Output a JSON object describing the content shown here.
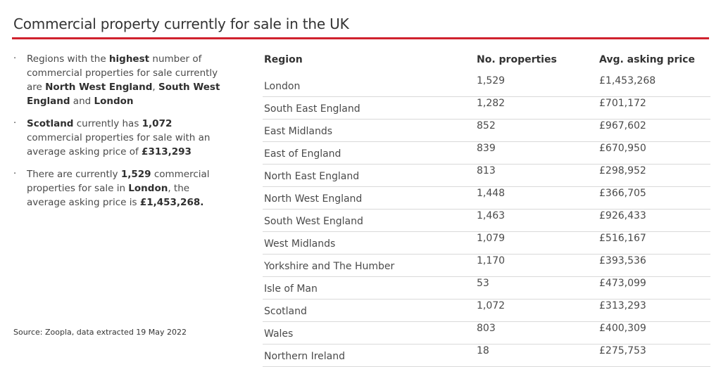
{
  "title": "Commercial property currently for sale in the UK",
  "accent_color": "#d0222e",
  "bullets": [
    {
      "parts": [
        {
          "text": "Regions with the ",
          "bold": false
        },
        {
          "text": "highest",
          "bold": true
        },
        {
          "text": " number of commercial properties for sale currently are ",
          "bold": false
        },
        {
          "text": "North West England",
          "bold": true
        },
        {
          "text": ", ",
          "bold": false
        },
        {
          "text": "South West England",
          "bold": true
        },
        {
          "text": " and ",
          "bold": false
        },
        {
          "text": "London",
          "bold": true
        }
      ]
    },
    {
      "parts": [
        {
          "text": "Scotland",
          "bold": true
        },
        {
          "text": " currently has ",
          "bold": false
        },
        {
          "text": "1,072",
          "bold": true
        },
        {
          "text": " commercial properties for sale with an average asking price of ",
          "bold": false
        },
        {
          "text": "£313,293",
          "bold": true
        }
      ]
    },
    {
      "parts": [
        {
          "text": "There are currently ",
          "bold": false
        },
        {
          "text": "1,529",
          "bold": true
        },
        {
          "text": " commercial properties for sale in ",
          "bold": false
        },
        {
          "text": "London",
          "bold": true
        },
        {
          "text": ", the average asking price is ",
          "bold": false
        },
        {
          "text": "£1,453,268.",
          "bold": true
        }
      ]
    }
  ],
  "source": "Source: Zoopla, data extracted 19 May 2022",
  "table": {
    "headers": [
      "Region",
      "No. properties",
      "Avg. asking price"
    ],
    "rows": [
      [
        "London",
        "1,529",
        "£1,453,268"
      ],
      [
        "South East England",
        "1,282",
        "£701,172"
      ],
      [
        "East Midlands",
        "852",
        "£967,602"
      ],
      [
        "East of England",
        "839",
        "£670,950"
      ],
      [
        "North East England",
        "813",
        "£298,952"
      ],
      [
        "North West England",
        "1,448",
        "£366,705"
      ],
      [
        "South West England",
        "1,463",
        "£926,433"
      ],
      [
        "West Midlands",
        "1,079",
        "£516,167"
      ],
      [
        "Yorkshire and The Humber",
        "1,170",
        "£393,536"
      ],
      [
        "Isle of Man",
        "53",
        "£473,099"
      ],
      [
        "Scotland",
        "1,072",
        "£313,293"
      ],
      [
        "Wales",
        "803",
        "£400,309"
      ],
      [
        "Northern Ireland",
        "18",
        "£275,753"
      ]
    ]
  }
}
